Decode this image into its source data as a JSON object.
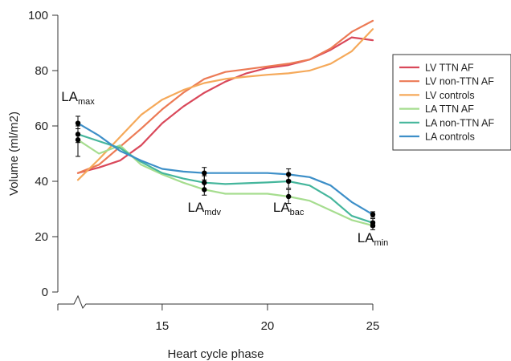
{
  "chart_data": {
    "type": "line",
    "xlabel": "Heart cycle phase",
    "ylabel": "Volume (ml/m2)",
    "xlim": [
      11,
      25
    ],
    "ylim": [
      0,
      100
    ],
    "x_ticks": [
      15,
      20,
      25
    ],
    "y_ticks": [
      0,
      20,
      40,
      60,
      80,
      100
    ],
    "x_axis_break": true,
    "grid": false,
    "legend_position": "right",
    "x": [
      11,
      12,
      13,
      14,
      15,
      16,
      17,
      18,
      19,
      20,
      21,
      22,
      23,
      24,
      25
    ],
    "series": [
      {
        "name": "LV TTN AF",
        "color": "#d9485a",
        "values": [
          43,
          45,
          47.5,
          53,
          61,
          67,
          72,
          76,
          79,
          81,
          82,
          84,
          87.5,
          92,
          91
        ]
      },
      {
        "name": "LV non-TTN AF",
        "color": "#ec7a55",
        "values": [
          43,
          46,
          52.5,
          59,
          66,
          72,
          77,
          79.5,
          80.5,
          81.5,
          82.5,
          84,
          88,
          94,
          98
        ]
      },
      {
        "name": "LV controls",
        "color": "#f5a95a",
        "values": [
          40.5,
          48,
          56,
          64,
          69.5,
          73,
          75.5,
          77,
          77.8,
          78.5,
          79,
          80,
          82.5,
          87,
          95
        ]
      },
      {
        "name": "LA TTN AF",
        "color": "#a6dd8f",
        "values": [
          55,
          50,
          53,
          46,
          42.5,
          39.5,
          37,
          35.5,
          35.5,
          35.5,
          34.5,
          33,
          29.5,
          26,
          24
        ]
      },
      {
        "name": "LA non-TTN AF",
        "color": "#45b69c",
        "values": [
          57,
          54.5,
          52,
          47,
          43,
          41,
          39.5,
          39,
          39.3,
          39.6,
          40,
          38.5,
          34,
          27.5,
          25
        ]
      },
      {
        "name": "LA controls",
        "color": "#3d8fc8",
        "values": [
          61,
          56.5,
          51,
          47.5,
          44.5,
          43.5,
          43,
          43,
          43,
          43,
          42.5,
          41.5,
          38.5,
          32.5,
          28
        ]
      }
    ],
    "error_bars": [
      {
        "x": 11,
        "y": 61,
        "low": 59,
        "high": 63.5
      },
      {
        "x": 11,
        "y": 57,
        "low": 54,
        "high": 60
      },
      {
        "x": 11,
        "y": 55,
        "low": 49,
        "high": 60
      },
      {
        "x": 17,
        "y": 43,
        "low": 40.5,
        "high": 45
      },
      {
        "x": 17,
        "y": 39.5,
        "low": 37,
        "high": 42
      },
      {
        "x": 17,
        "y": 37,
        "low": 35,
        "high": 39.5
      },
      {
        "x": 21,
        "y": 42.5,
        "low": 40.5,
        "high": 44.5
      },
      {
        "x": 21,
        "y": 40,
        "low": 37.5,
        "high": 42.5
      },
      {
        "x": 21,
        "y": 34.5,
        "low": 32,
        "high": 37
      },
      {
        "x": 25,
        "y": 28,
        "low": 27,
        "high": 29
      },
      {
        "x": 25,
        "y": 25,
        "low": 23.5,
        "high": 26.5
      },
      {
        "x": 25,
        "y": 24,
        "low": 22.5,
        "high": 25.5
      }
    ],
    "annotations": [
      {
        "main": "LA",
        "sub": "max",
        "x": 11,
        "y": 69
      },
      {
        "main": "LA",
        "sub": "mdv",
        "x": 17,
        "y": 29
      },
      {
        "main": "LA",
        "sub": "bac",
        "x": 21,
        "y": 29
      },
      {
        "main": "LA",
        "sub": "min",
        "x": 25,
        "y": 18
      }
    ]
  }
}
